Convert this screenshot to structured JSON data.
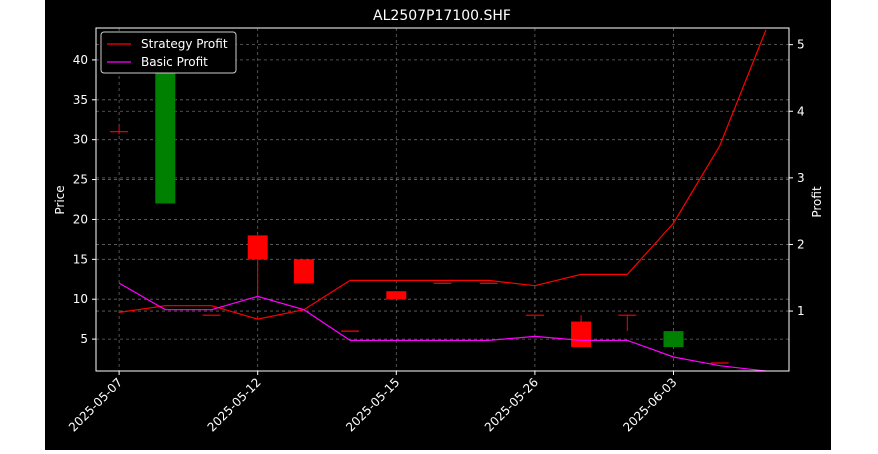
{
  "chart_data": {
    "type": "candlestick",
    "title": "AL2507P17100.SHF",
    "ylabel_left": "Price",
    "ylabel_right": "Profit",
    "xlabel": "",
    "ylim_left": [
      1,
      44
    ],
    "ylim_right": [
      0.1,
      5.25
    ],
    "yticks_left": [
      5,
      10,
      15,
      20,
      25,
      30,
      35,
      40
    ],
    "yticks_right": [
      1,
      2,
      3,
      4,
      5
    ],
    "grid": true,
    "legend_position": "top-left",
    "x_index_range": [
      -0.5,
      14.5
    ],
    "xtick_positions": [
      0,
      3,
      6,
      9,
      12
    ],
    "xtick_labels": [
      "2025-05-07",
      "2025-05-12",
      "2025-05-15",
      "2025-05-26",
      "2025-06-03"
    ],
    "candles": [
      {
        "i": 0,
        "open": 31.0,
        "close": 31.0,
        "high": 31.7,
        "low": 30.7
      },
      {
        "i": 1,
        "open": 22.0,
        "close": 42.0,
        "high": 42.0,
        "low": 22.0
      },
      {
        "i": 2,
        "open": 8.0,
        "close": 8.0,
        "high": 8.0,
        "low": 8.0
      },
      {
        "i": 3,
        "open": 18.0,
        "close": 15.0,
        "high": 18.0,
        "low": 10.3
      },
      {
        "i": 4,
        "open": 15.0,
        "close": 12.0,
        "high": 15.0,
        "low": 12.0
      },
      {
        "i": 5,
        "open": 6.0,
        "close": 6.0,
        "high": 6.0,
        "low": 6.0
      },
      {
        "i": 6,
        "open": 11.0,
        "close": 10.0,
        "high": 11.0,
        "low": 10.0
      },
      {
        "i": 7,
        "open": 12.0,
        "close": 12.0,
        "high": 12.0,
        "low": 12.0
      },
      {
        "i": 8,
        "open": 12.0,
        "close": 12.0,
        "high": 12.0,
        "low": 12.0
      },
      {
        "i": 9,
        "open": 8.0,
        "close": 8.0,
        "high": 8.0,
        "low": 8.0
      },
      {
        "i": 10,
        "open": 7.2,
        "close": 4.0,
        "high": 8.0,
        "low": 4.0
      },
      {
        "i": 11,
        "open": 8.0,
        "close": 8.0,
        "high": 8.0,
        "low": 6.0
      },
      {
        "i": 12,
        "open": 4.0,
        "close": 6.0,
        "high": 6.0,
        "low": 4.0
      },
      {
        "i": 13,
        "open": 2.0,
        "close": 2.0,
        "high": 2.0,
        "low": 2.0
      }
    ],
    "series": [
      {
        "name": "Strategy Profit",
        "color": "#ff0000",
        "axis": "right",
        "x": [
          0,
          1,
          2,
          3,
          4,
          5,
          6,
          7,
          8,
          9,
          10,
          11,
          12,
          13,
          14
        ],
        "values": [
          0.98,
          1.08,
          1.08,
          0.88,
          1.02,
          1.46,
          1.46,
          1.46,
          1.46,
          1.38,
          1.55,
          1.55,
          2.32,
          3.48,
          5.22
        ]
      },
      {
        "name": "Basic Profit",
        "color": "#ff00ff",
        "axis": "right",
        "x": [
          0,
          1,
          2,
          3,
          4,
          5,
          6,
          7,
          8,
          9,
          10,
          11,
          12,
          13,
          14
        ],
        "values": [
          1.42,
          1.02,
          1.02,
          1.22,
          1.02,
          0.56,
          0.56,
          0.56,
          0.56,
          0.62,
          0.56,
          0.56,
          0.31,
          0.18,
          0.1
        ]
      }
    ],
    "up_color": "#008000",
    "down_color": "#ff0000"
  }
}
